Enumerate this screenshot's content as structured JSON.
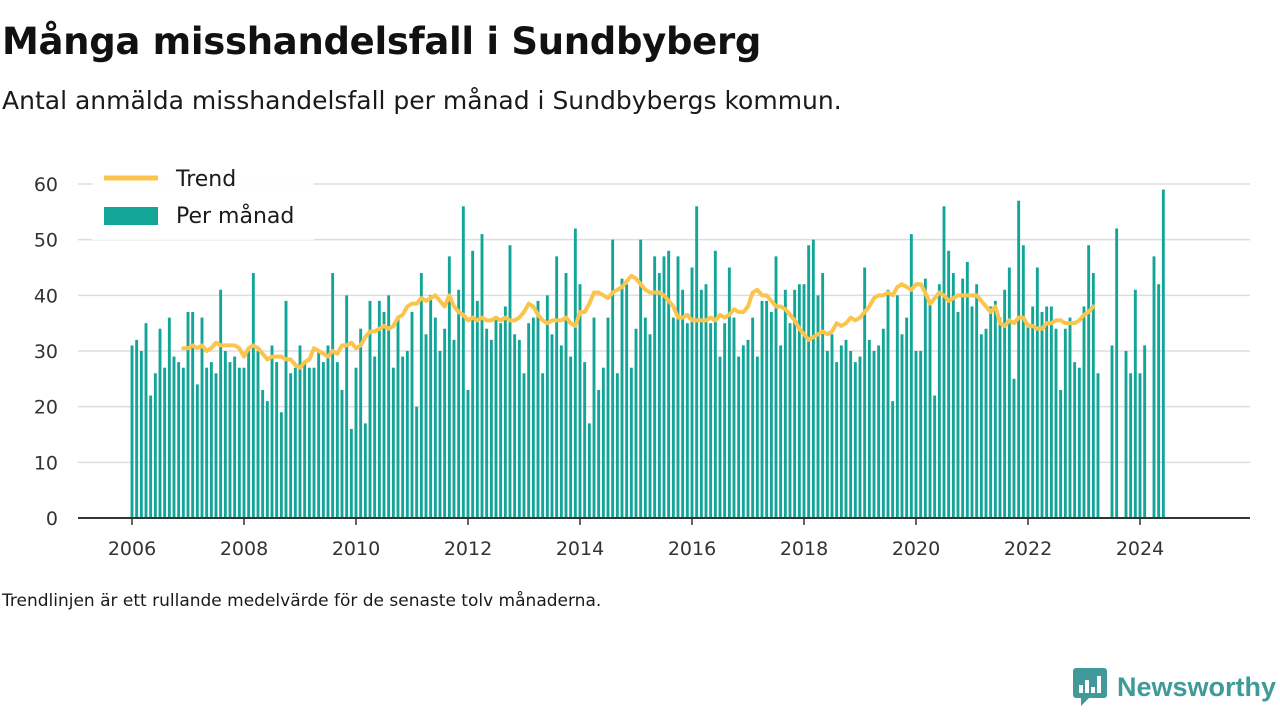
{
  "header": {
    "title": "Många misshandelsfall i Sundbyberg",
    "subtitle": "Antal anmälda misshandelsfall per månad i Sundbybergs kommun."
  },
  "footnote": "Trendlinjen är ett rullande medelvärde för de senaste tolv månaderna.",
  "brand": {
    "name": "Newsworthy",
    "icon": "newsworthy-logo-icon",
    "color": "#3f9a99"
  },
  "colors": {
    "bars": "#13a598",
    "trend": "#fcc44c",
    "grid": "#dddddd",
    "axis": "#333333"
  },
  "chart_data": {
    "type": "bar",
    "x_start": "2006-01",
    "x_ticks": [
      "2006",
      "2008",
      "2010",
      "2012",
      "2014",
      "2016",
      "2018",
      "2020",
      "2022",
      "2024"
    ],
    "y_ticks": [
      0,
      10,
      20,
      30,
      40,
      50,
      60
    ],
    "ylim": [
      0,
      60
    ],
    "grid": "horizontal",
    "legend": {
      "position": "top-left",
      "entries": [
        "Trend",
        "Per månad"
      ]
    },
    "series": [
      {
        "name": "Per månad",
        "type": "bar",
        "values": [
          31,
          32,
          30,
          35,
          22,
          26,
          34,
          27,
          36,
          29,
          28,
          27,
          37,
          37,
          24,
          36,
          27,
          28,
          26,
          41,
          30,
          28,
          29,
          27,
          27,
          30,
          44,
          30,
          23,
          21,
          31,
          28,
          19,
          39,
          26,
          27,
          31,
          28,
          27,
          27,
          30,
          28,
          31,
          44,
          28,
          23,
          40,
          16,
          27,
          34,
          17,
          39,
          29,
          39,
          37,
          40,
          27,
          36,
          29,
          30,
          37,
          20,
          44,
          33,
          40,
          36,
          30,
          34,
          47,
          32,
          41,
          56,
          23,
          48,
          39,
          51,
          34,
          32,
          36,
          35,
          38,
          49,
          33,
          32,
          26,
          35,
          36,
          39,
          26,
          40,
          33,
          47,
          31,
          44,
          29,
          52,
          42,
          28,
          17,
          36,
          23,
          27,
          36,
          50,
          26,
          43,
          42,
          27,
          34,
          50,
          36,
          33,
          47,
          44,
          47,
          48,
          36,
          47,
          41,
          35,
          45,
          56,
          41,
          42,
          35,
          48,
          29,
          35,
          45,
          36,
          29,
          31,
          32,
          36,
          29,
          39,
          39,
          37,
          47,
          31,
          41,
          35,
          41,
          42,
          42,
          49,
          50,
          40,
          44,
          30,
          33,
          28,
          31,
          32,
          30,
          28,
          29,
          45,
          32,
          30,
          31,
          34,
          41,
          21,
          40,
          33,
          36,
          51,
          30,
          30,
          43,
          39,
          22,
          42,
          56,
          48,
          44,
          37,
          43,
          46,
          38,
          42,
          33,
          34,
          38,
          39,
          36,
          41,
          45,
          25,
          57,
          49,
          35,
          38,
          45,
          37,
          38,
          38,
          34,
          23,
          34,
          36,
          28,
          27,
          38,
          49,
          44,
          26,
          0,
          0,
          31,
          52,
          0,
          30,
          26,
          41,
          26,
          31,
          0,
          47,
          42,
          59
        ],
        "color": "#13a598"
      },
      {
        "name": "Trend",
        "type": "line",
        "start_index": 11,
        "values": [
          30.5,
          30.5,
          31,
          30.5,
          31,
          30,
          30.5,
          31.5,
          31,
          31,
          31,
          31,
          30.5,
          29,
          30.5,
          31,
          30.5,
          29.5,
          28.5,
          29,
          29,
          29,
          28.5,
          28.5,
          27.5,
          27,
          28,
          28.5,
          30.5,
          30,
          29.5,
          29,
          30,
          29.5,
          31,
          31,
          31.5,
          30.5,
          31,
          32.5,
          33.5,
          33.5,
          34,
          34.5,
          34,
          34.5,
          36,
          36.5,
          38,
          38.5,
          38.5,
          39.5,
          39,
          39.5,
          40,
          39,
          38,
          40,
          38,
          37,
          36.5,
          35.5,
          36,
          35.5,
          36,
          35.5,
          35.5,
          36,
          35.5,
          36,
          35.5,
          35.5,
          36,
          37,
          38.5,
          38,
          36.5,
          35.5,
          35,
          35.5,
          35.5,
          35.5,
          36,
          35,
          34.5,
          37,
          37,
          38.5,
          40.5,
          40.5,
          40,
          39.5,
          40.5,
          41,
          41.5,
          42.5,
          43.5,
          43,
          42,
          41,
          40.5,
          40.5,
          40.5,
          40,
          39,
          38,
          36,
          36,
          36.5,
          35.5,
          35.5,
          35.5,
          35.5,
          36,
          35.5,
          36.5,
          36,
          36.5,
          37.5,
          37,
          37,
          38,
          40.5,
          41,
          40,
          40,
          39,
          38,
          38,
          37.5,
          36.5,
          35.5,
          34,
          33,
          32,
          32.5,
          33,
          33.5,
          33,
          33.5,
          35,
          34.5,
          35,
          36,
          35.5,
          36,
          37,
          38,
          39.5,
          40,
          40,
          40.5,
          40,
          41.5,
          42,
          41.5,
          41,
          42,
          42,
          40.5,
          38.5,
          39.5,
          40.5,
          40,
          39,
          39.5,
          40,
          40,
          40,
          40,
          40,
          39,
          38,
          37,
          38,
          35,
          34.5,
          35.5,
          35,
          36,
          36,
          34.5,
          34.5,
          34,
          34,
          35,
          35,
          35.5,
          35.5,
          35,
          35,
          35,
          35.5,
          36.5,
          37,
          38
        ],
        "color": "#fcc44c"
      }
    ]
  }
}
